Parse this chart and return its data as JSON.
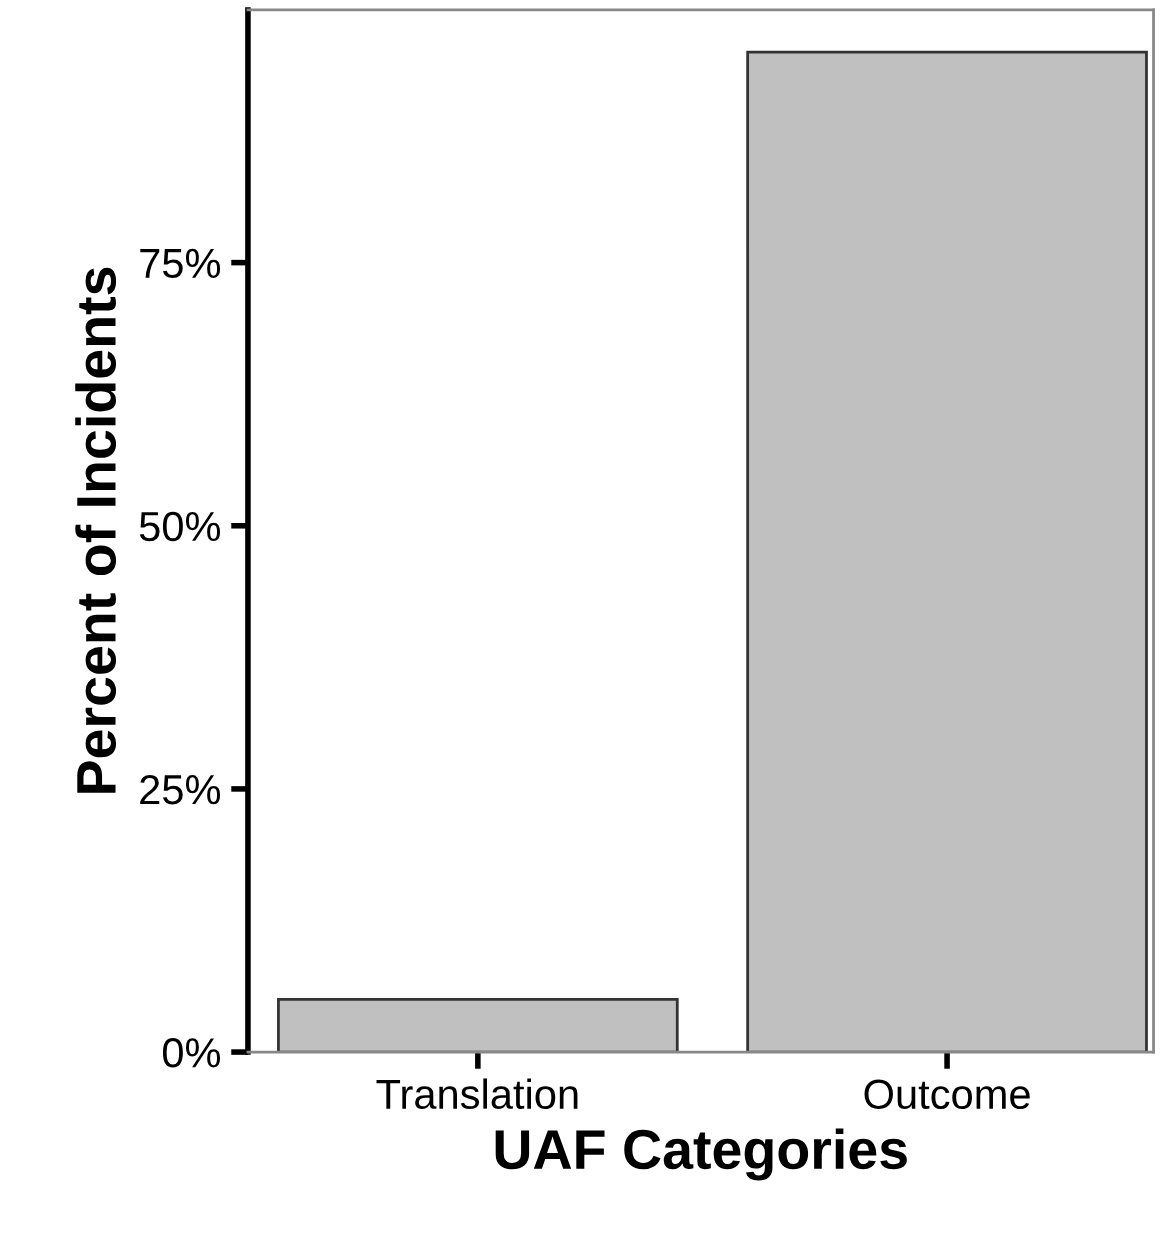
{
  "chart_data": {
    "type": "bar",
    "xlabel": "UAF Categories",
    "ylabel": "Percent of Incidents",
    "categories": [
      "Translation",
      "Outcome"
    ],
    "values": [
      5,
      95
    ],
    "color": "#c0c0c0",
    "ylim": [
      0,
      99
    ],
    "yticks": [
      {
        "value": 0,
        "label": "0%"
      },
      {
        "value": 25,
        "label": "25%"
      },
      {
        "value": 50,
        "label": "50%"
      },
      {
        "value": 75,
        "label": "75%"
      }
    ],
    "grid": false
  }
}
